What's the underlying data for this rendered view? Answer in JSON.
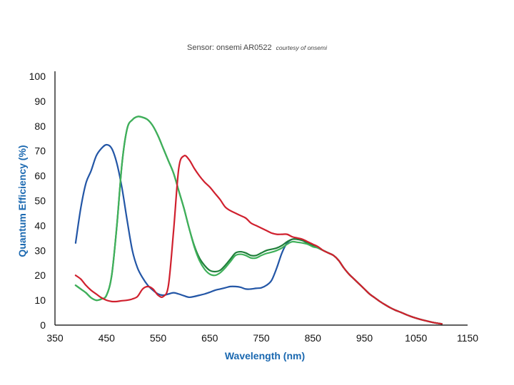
{
  "title": {
    "main": "Sensor: onsemi AR0522",
    "credit": "courtesy of onsemi"
  },
  "colors": {
    "axis_title": "#1a68b0",
    "axis_line": "#000000"
  },
  "chart_data": {
    "type": "line",
    "title": "Sensor: onsemi AR0522",
    "subtitle": "courtesy of onsemi",
    "xlabel": "Wavelength (nm)",
    "ylabel": "Quantum Efficiency (%)",
    "xlim": [
      350,
      1150
    ],
    "ylim": [
      0,
      100
    ],
    "xticks": [
      350,
      450,
      550,
      650,
      750,
      850,
      950,
      1050,
      1150
    ],
    "yticks": [
      0,
      10,
      20,
      30,
      40,
      50,
      60,
      70,
      80,
      90,
      100
    ],
    "grid": false,
    "legend": "none",
    "series": [
      {
        "color": "#2356a6",
        "points": [
          [
            390,
            33
          ],
          [
            400,
            47
          ],
          [
            410,
            57
          ],
          [
            420,
            62
          ],
          [
            430,
            68
          ],
          [
            440,
            71
          ],
          [
            450,
            72.5
          ],
          [
            460,
            71
          ],
          [
            470,
            65
          ],
          [
            480,
            55
          ],
          [
            490,
            42
          ],
          [
            500,
            30
          ],
          [
            510,
            23
          ],
          [
            520,
            19
          ],
          [
            530,
            16
          ],
          [
            540,
            14
          ],
          [
            550,
            12.5
          ],
          [
            560,
            12
          ],
          [
            570,
            12.5
          ],
          [
            580,
            13
          ],
          [
            590,
            12.5
          ],
          [
            600,
            11.8
          ],
          [
            610,
            11.2
          ],
          [
            620,
            11.5
          ],
          [
            630,
            12
          ],
          [
            640,
            12.5
          ],
          [
            650,
            13.2
          ],
          [
            660,
            14
          ],
          [
            670,
            14.5
          ],
          [
            680,
            15
          ],
          [
            690,
            15.5
          ],
          [
            700,
            15.5
          ],
          [
            710,
            15.2
          ],
          [
            720,
            14.5
          ],
          [
            730,
            14.5
          ],
          [
            740,
            14.8
          ],
          [
            750,
            15
          ],
          [
            760,
            16
          ],
          [
            770,
            18
          ],
          [
            780,
            23
          ],
          [
            790,
            29
          ],
          [
            800,
            33
          ],
          [
            810,
            34.5
          ],
          [
            820,
            34.5
          ],
          [
            830,
            34
          ],
          [
            840,
            33
          ],
          [
            850,
            32
          ],
          [
            860,
            31
          ],
          [
            870,
            30
          ],
          [
            880,
            29
          ],
          [
            890,
            28
          ],
          [
            900,
            26
          ],
          [
            910,
            23
          ],
          [
            920,
            20.5
          ],
          [
            930,
            18.5
          ],
          [
            940,
            16.5
          ],
          [
            950,
            14.5
          ],
          [
            960,
            12.5
          ],
          [
            970,
            11
          ],
          [
            980,
            9.5
          ],
          [
            990,
            8.2
          ],
          [
            1000,
            7
          ],
          [
            1010,
            6
          ],
          [
            1020,
            5.2
          ],
          [
            1030,
            4.3
          ],
          [
            1040,
            3.5
          ],
          [
            1050,
            2.8
          ],
          [
            1060,
            2.2
          ],
          [
            1070,
            1.7
          ],
          [
            1080,
            1.2
          ],
          [
            1090,
            0.8
          ],
          [
            1100,
            0.5
          ]
        ]
      },
      {
        "color": "#1f7f3a",
        "points": [
          [
            390,
            16
          ],
          [
            400,
            14.5
          ],
          [
            410,
            13
          ],
          [
            420,
            11
          ],
          [
            430,
            10
          ],
          [
            440,
            10.5
          ],
          [
            450,
            12
          ],
          [
            460,
            20
          ],
          [
            470,
            40
          ],
          [
            480,
            65
          ],
          [
            490,
            79
          ],
          [
            500,
            82.5
          ],
          [
            510,
            83.8
          ],
          [
            520,
            83.5
          ],
          [
            530,
            82.5
          ],
          [
            540,
            80
          ],
          [
            550,
            76
          ],
          [
            560,
            71
          ],
          [
            570,
            66
          ],
          [
            580,
            61
          ],
          [
            590,
            54
          ],
          [
            600,
            47
          ],
          [
            610,
            39
          ],
          [
            620,
            32
          ],
          [
            630,
            27
          ],
          [
            640,
            24
          ],
          [
            650,
            22
          ],
          [
            660,
            21.5
          ],
          [
            670,
            22
          ],
          [
            680,
            24
          ],
          [
            690,
            26.5
          ],
          [
            700,
            29
          ],
          [
            710,
            29.5
          ],
          [
            720,
            29
          ],
          [
            730,
            28
          ],
          [
            740,
            28
          ],
          [
            750,
            29
          ],
          [
            760,
            30
          ],
          [
            770,
            30.5
          ],
          [
            780,
            31
          ],
          [
            790,
            32
          ],
          [
            800,
            33.5
          ],
          [
            810,
            34.5
          ],
          [
            820,
            34.5
          ],
          [
            830,
            34
          ],
          [
            840,
            33
          ],
          [
            850,
            32
          ],
          [
            860,
            31
          ],
          [
            870,
            30
          ],
          [
            880,
            29
          ],
          [
            890,
            28
          ],
          [
            900,
            26
          ],
          [
            910,
            23
          ],
          [
            920,
            20.5
          ],
          [
            930,
            18.5
          ],
          [
            940,
            16.5
          ],
          [
            950,
            14.5
          ],
          [
            960,
            12.5
          ],
          [
            970,
            11
          ],
          [
            980,
            9.5
          ],
          [
            990,
            8.2
          ],
          [
            1000,
            7
          ],
          [
            1010,
            6
          ],
          [
            1020,
            5.2
          ],
          [
            1030,
            4.3
          ],
          [
            1040,
            3.5
          ],
          [
            1050,
            2.8
          ],
          [
            1060,
            2.2
          ],
          [
            1070,
            1.7
          ],
          [
            1080,
            1.2
          ],
          [
            1090,
            0.8
          ],
          [
            1100,
            0.5
          ]
        ]
      },
      {
        "color": "#3fb05a",
        "points": [
          [
            390,
            16
          ],
          [
            400,
            14.5
          ],
          [
            410,
            13
          ],
          [
            420,
            11
          ],
          [
            430,
            10
          ],
          [
            440,
            10.5
          ],
          [
            450,
            12
          ],
          [
            460,
            20
          ],
          [
            470,
            40
          ],
          [
            480,
            65
          ],
          [
            490,
            79
          ],
          [
            500,
            82.5
          ],
          [
            510,
            83.8
          ],
          [
            520,
            83.5
          ],
          [
            530,
            82.5
          ],
          [
            540,
            80
          ],
          [
            550,
            76
          ],
          [
            560,
            71
          ],
          [
            570,
            66
          ],
          [
            580,
            61
          ],
          [
            590,
            54
          ],
          [
            600,
            47
          ],
          [
            610,
            39
          ],
          [
            620,
            31.5
          ],
          [
            630,
            26
          ],
          [
            640,
            22.5
          ],
          [
            650,
            20.5
          ],
          [
            660,
            20
          ],
          [
            670,
            21
          ],
          [
            680,
            23
          ],
          [
            690,
            25.5
          ],
          [
            700,
            28
          ],
          [
            710,
            28.5
          ],
          [
            720,
            28
          ],
          [
            730,
            27
          ],
          [
            740,
            27
          ],
          [
            750,
            28
          ],
          [
            760,
            28.8
          ],
          [
            770,
            29.3
          ],
          [
            780,
            30
          ],
          [
            790,
            31
          ],
          [
            800,
            32.5
          ],
          [
            810,
            33.5
          ],
          [
            820,
            33.3
          ],
          [
            830,
            33
          ],
          [
            840,
            32.5
          ],
          [
            850,
            31.5
          ],
          [
            860,
            31
          ],
          [
            870,
            30
          ],
          [
            880,
            29
          ],
          [
            890,
            28
          ],
          [
            900,
            26
          ],
          [
            910,
            23
          ],
          [
            920,
            20.5
          ],
          [
            930,
            18.5
          ],
          [
            940,
            16.5
          ],
          [
            950,
            14.5
          ],
          [
            960,
            12.5
          ],
          [
            970,
            11
          ],
          [
            980,
            9.5
          ],
          [
            990,
            8.2
          ],
          [
            1000,
            7
          ],
          [
            1010,
            6
          ],
          [
            1020,
            5.2
          ],
          [
            1030,
            4.3
          ],
          [
            1040,
            3.5
          ],
          [
            1050,
            2.8
          ],
          [
            1060,
            2.2
          ],
          [
            1070,
            1.7
          ],
          [
            1080,
            1.2
          ],
          [
            1090,
            0.8
          ],
          [
            1100,
            0.5
          ]
        ]
      },
      {
        "color": "#d0202e",
        "points": [
          [
            390,
            20
          ],
          [
            400,
            18.5
          ],
          [
            410,
            16
          ],
          [
            420,
            14
          ],
          [
            430,
            12.5
          ],
          [
            440,
            11
          ],
          [
            450,
            10
          ],
          [
            460,
            9.5
          ],
          [
            470,
            9.5
          ],
          [
            480,
            9.8
          ],
          [
            490,
            10
          ],
          [
            500,
            10.5
          ],
          [
            510,
            11.5
          ],
          [
            520,
            14.5
          ],
          [
            530,
            15.5
          ],
          [
            540,
            14.5
          ],
          [
            550,
            12
          ],
          [
            560,
            11.5
          ],
          [
            570,
            16
          ],
          [
            580,
            38
          ],
          [
            590,
            63
          ],
          [
            600,
            68
          ],
          [
            610,
            66.5
          ],
          [
            620,
            63
          ],
          [
            630,
            60
          ],
          [
            640,
            57.5
          ],
          [
            650,
            55.5
          ],
          [
            660,
            53
          ],
          [
            670,
            50.5
          ],
          [
            680,
            47.5
          ],
          [
            690,
            46
          ],
          [
            700,
            45
          ],
          [
            710,
            44
          ],
          [
            720,
            43
          ],
          [
            730,
            41
          ],
          [
            740,
            40
          ],
          [
            750,
            39
          ],
          [
            760,
            38
          ],
          [
            770,
            37
          ],
          [
            780,
            36.5
          ],
          [
            790,
            36.5
          ],
          [
            800,
            36.5
          ],
          [
            810,
            35.5
          ],
          [
            820,
            35
          ],
          [
            830,
            34.5
          ],
          [
            840,
            33.5
          ],
          [
            850,
            32.5
          ],
          [
            860,
            31.5
          ],
          [
            870,
            30
          ],
          [
            880,
            29
          ],
          [
            890,
            28
          ],
          [
            900,
            26
          ],
          [
            910,
            23
          ],
          [
            920,
            20.5
          ],
          [
            930,
            18.5
          ],
          [
            940,
            16.5
          ],
          [
            950,
            14.5
          ],
          [
            960,
            12.5
          ],
          [
            970,
            11
          ],
          [
            980,
            9.5
          ],
          [
            990,
            8.2
          ],
          [
            1000,
            7
          ],
          [
            1010,
            6
          ],
          [
            1020,
            5.2
          ],
          [
            1030,
            4.3
          ],
          [
            1040,
            3.5
          ],
          [
            1050,
            2.8
          ],
          [
            1060,
            2.2
          ],
          [
            1070,
            1.7
          ],
          [
            1080,
            1.2
          ],
          [
            1090,
            0.8
          ],
          [
            1100,
            0.5
          ]
        ]
      }
    ]
  }
}
